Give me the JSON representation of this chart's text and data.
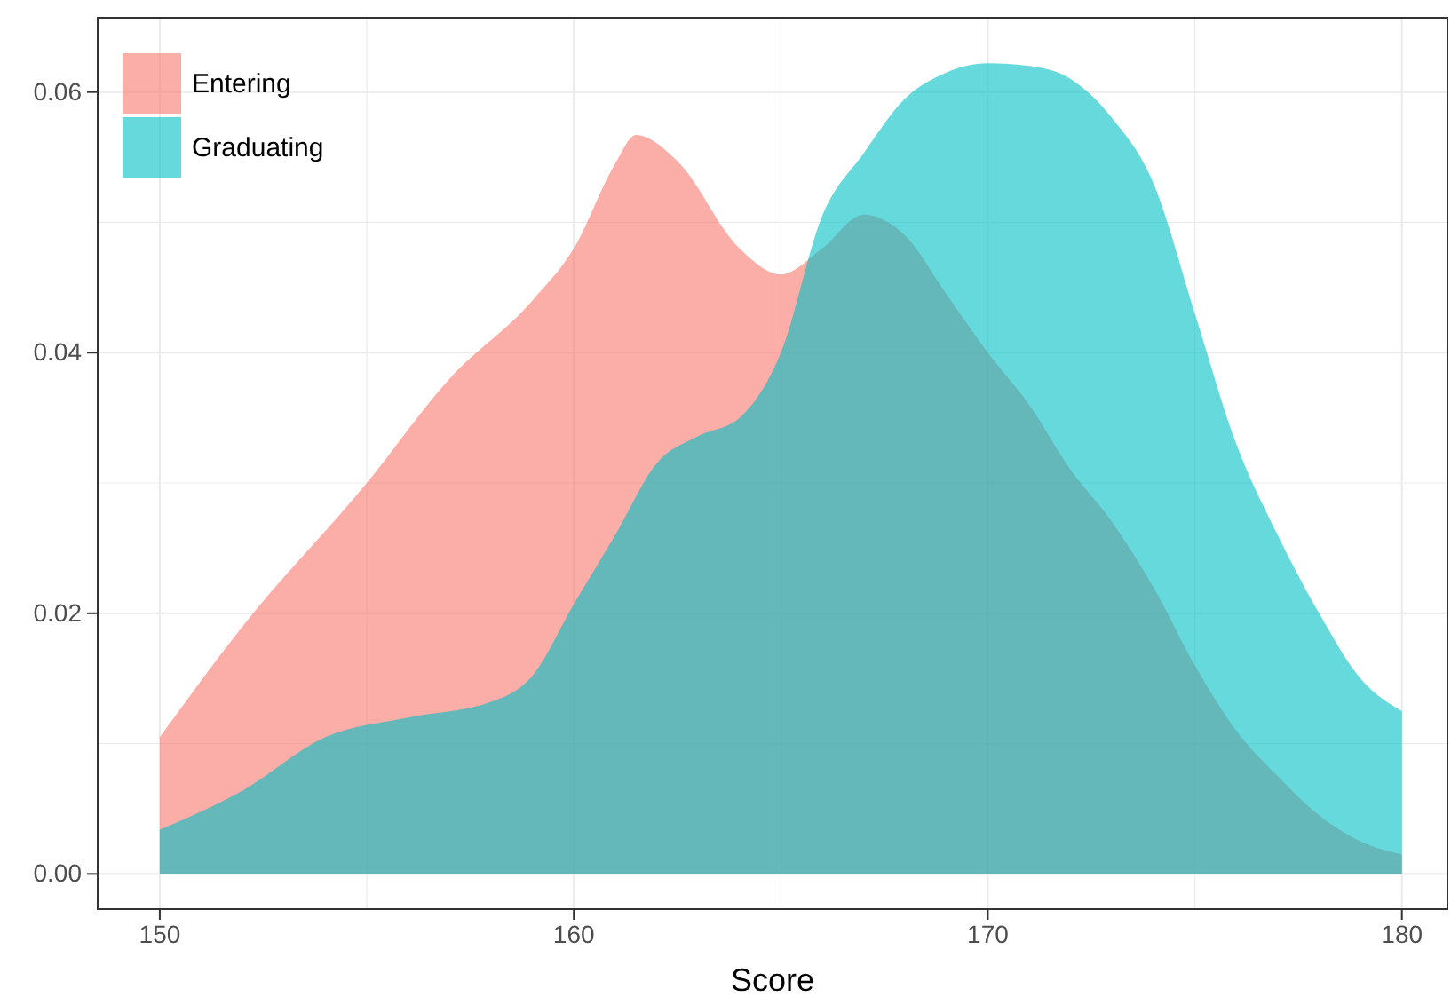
{
  "chart_data": {
    "type": "area",
    "xlabel": "Score",
    "xlim": [
      148.5,
      181.1
    ],
    "ylim": [
      -0.0027,
      0.0657
    ],
    "xticks": [
      150,
      {
        "value": 155,
        "label": null
      },
      160,
      {
        "value": 165,
        "label": null
      },
      170,
      {
        "value": 175,
        "label": null
      },
      180
    ],
    "yticks": [
      {
        "value": 0,
        "label": "0.00"
      },
      {
        "value": 0.01,
        "label": null
      },
      {
        "value": 0.02,
        "label": "0.02"
      },
      {
        "value": 0.03,
        "label": null
      },
      {
        "value": 0.04,
        "label": "0.04"
      },
      {
        "value": 0.05,
        "label": null
      },
      {
        "value": 0.06,
        "label": "0.06"
      }
    ],
    "grid": true,
    "legend": "top left",
    "series": [
      {
        "name": "Entering",
        "color": "#f8766d",
        "x": [
          150,
          152,
          155,
          157,
          159,
          160,
          161,
          161.5,
          162.5,
          164,
          165,
          166,
          167,
          168,
          169,
          170,
          171,
          172,
          173,
          174,
          175,
          176,
          177,
          178,
          179,
          180
        ],
        "values": [
          0.0105,
          0.019,
          0.03,
          0.038,
          0.044,
          0.048,
          0.0545,
          0.0567,
          0.0547,
          0.048,
          0.046,
          0.048,
          0.0506,
          0.049,
          0.0445,
          0.04,
          0.036,
          0.031,
          0.027,
          0.022,
          0.016,
          0.011,
          0.0075,
          0.0045,
          0.0025,
          0.0015
        ]
      },
      {
        "name": "Graduating",
        "color": "#00bfc4",
        "x": [
          150,
          152,
          154,
          156,
          158,
          159,
          160,
          161,
          162,
          163,
          164,
          165,
          166,
          167,
          168,
          169,
          170,
          171,
          172,
          173,
          174,
          175,
          176,
          177,
          178,
          179,
          180
        ],
        "values": [
          0.0034,
          0.0064,
          0.0105,
          0.012,
          0.0132,
          0.0152,
          0.0207,
          0.026,
          0.0315,
          0.0336,
          0.035,
          0.04,
          0.0505,
          0.0553,
          0.0595,
          0.0615,
          0.0622,
          0.062,
          0.061,
          0.058,
          0.053,
          0.043,
          0.033,
          0.026,
          0.02,
          0.015,
          0.0125
        ]
      }
    ]
  }
}
